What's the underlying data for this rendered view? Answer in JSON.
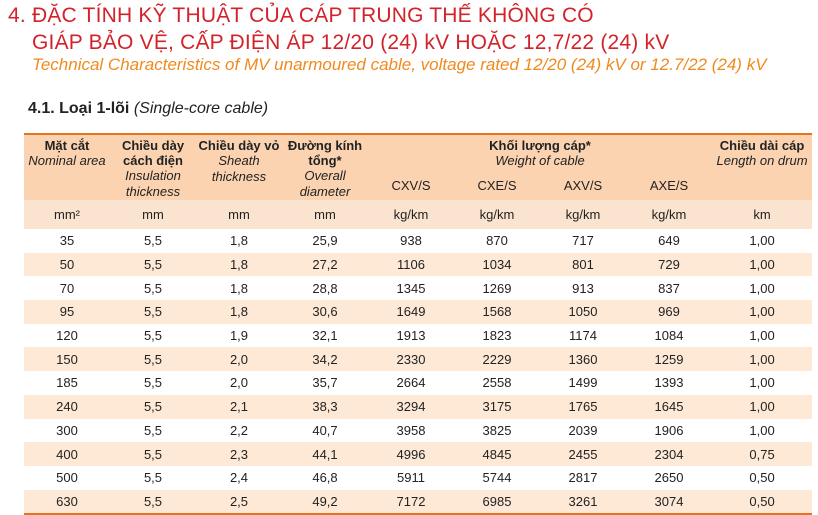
{
  "heading": {
    "line1": "4. ĐẶC TÍNH KỸ THUẬT CỦA CÁP TRUNG THẾ KHÔNG CÓ",
    "line2": "GIÁP BẢO VỆ, CẤP ĐIỆN ÁP 12/20 (24) kV HOẶC 12,7/22 (24) kV",
    "subtitle": "Technical Characteristics of MV unarmoured cable, voltage rated 12/20 (24) kV or 12.7/22 (24) kV"
  },
  "section": {
    "label": "4.1. Loại 1-lõi",
    "label_en": "(Single-core cable)"
  },
  "colors": {
    "title_red": "#d2232a",
    "subtitle_orange": "#f08a1e",
    "header_bg": "#fbd3b1",
    "stripe_bg": "#fde9d6"
  },
  "table": {
    "headers": {
      "area_vn": "Mặt cắt",
      "area_en": "Nominal area",
      "insulation_vn": "Chiều dày cách điện",
      "insulation_en": "Insulation thickness",
      "sheath_vn": "Chiều dày vỏ",
      "sheath_en": "Sheath thickness",
      "diameter_vn": "Đường kính tổng*",
      "diameter_en": "Overall diameter",
      "weight_vn": "Khối lượng cáp*",
      "weight_en": "Weight of cable",
      "cxv": "CXV/S",
      "cxe": "CXE/S",
      "axv": "AXV/S",
      "axe": "AXE/S",
      "length_vn": "Chiều dài cáp",
      "length_en": "Length on drum"
    },
    "units": [
      "mm²",
      "mm",
      "mm",
      "mm",
      "kg/km",
      "kg/km",
      "kg/km",
      "kg/km",
      "km"
    ],
    "rows": [
      [
        "35",
        "5,5",
        "1,8",
        "25,9",
        "938",
        "870",
        "717",
        "649",
        "1,00"
      ],
      [
        "50",
        "5,5",
        "1,8",
        "27,2",
        "1106",
        "1034",
        "801",
        "729",
        "1,00"
      ],
      [
        "70",
        "5,5",
        "1,8",
        "28,8",
        "1345",
        "1269",
        "913",
        "837",
        "1,00"
      ],
      [
        "95",
        "5,5",
        "1,8",
        "30,6",
        "1649",
        "1568",
        "1050",
        "969",
        "1,00"
      ],
      [
        "120",
        "5,5",
        "1,9",
        "32,1",
        "1913",
        "1823",
        "1174",
        "1084",
        "1,00"
      ],
      [
        "150",
        "5,5",
        "2,0",
        "34,2",
        "2330",
        "2229",
        "1360",
        "1259",
        "1,00"
      ],
      [
        "185",
        "5,5",
        "2,0",
        "35,7",
        "2664",
        "2558",
        "1499",
        "1393",
        "1,00"
      ],
      [
        "240",
        "5,5",
        "2,1",
        "38,3",
        "3294",
        "3175",
        "1765",
        "1645",
        "1,00"
      ],
      [
        "300",
        "5,5",
        "2,2",
        "40,7",
        "3958",
        "3825",
        "2039",
        "1906",
        "1,00"
      ],
      [
        "400",
        "5,5",
        "2,3",
        "44,1",
        "4996",
        "4845",
        "2455",
        "2304",
        "0,75"
      ],
      [
        "500",
        "5,5",
        "2,4",
        "46,8",
        "5911",
        "5744",
        "2817",
        "2650",
        "0,50"
      ],
      [
        "630",
        "5,5",
        "2,5",
        "49,2",
        "7172",
        "6985",
        "3261",
        "3074",
        "0,50"
      ]
    ]
  }
}
